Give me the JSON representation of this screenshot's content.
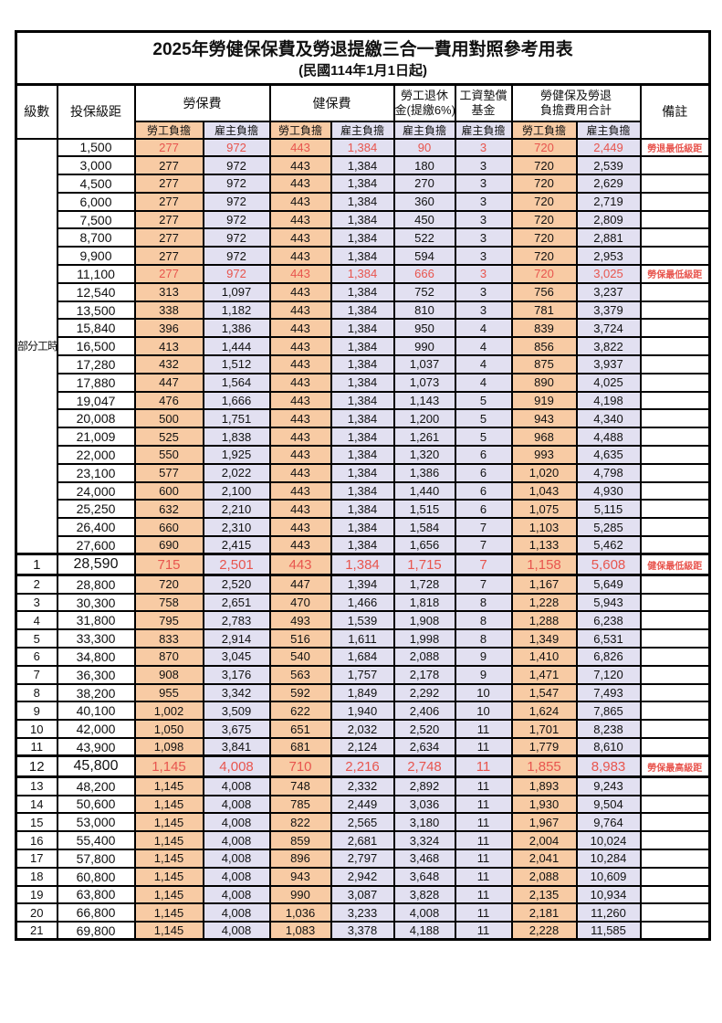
{
  "title": "2025年勞健保保費及勞退提繳三合一費用對照參考用表",
  "subtitle": "(民國114年1月1日起)",
  "columns": {
    "level": "級數",
    "bracket": "投保級距",
    "labor_fee": "勞保費",
    "health_fee": "健保費",
    "pension_line1": "勞工退休",
    "pension_line2": "金(提繳6%)",
    "wage_fund_line1": "工資墊償",
    "wage_fund_line2": "基金",
    "total_line1": "勞健保及勞退",
    "total_line2": "負擔費用合計",
    "remark": "備註",
    "employee_share": "勞工負擔",
    "employer_share": "雇主負擔"
  },
  "part_time_label": "部分工時",
  "colors": {
    "employee_bg": "#F8CBA4",
    "employer_bg": "#E2E0F1",
    "highlight_red": "#E8554E",
    "border": "#000000"
  },
  "rows": [
    {
      "level": "",
      "bracket": "1,500",
      "values": [
        "277",
        "972",
        "443",
        "1,384",
        "90",
        "3",
        "720",
        "2,449"
      ],
      "remark": "勞退最低級距",
      "red": true,
      "big": false
    },
    {
      "level": "",
      "bracket": "3,000",
      "values": [
        "277",
        "972",
        "443",
        "1,384",
        "180",
        "3",
        "720",
        "2,539"
      ],
      "remark": "",
      "red": false,
      "big": false
    },
    {
      "level": "",
      "bracket": "4,500",
      "values": [
        "277",
        "972",
        "443",
        "1,384",
        "270",
        "3",
        "720",
        "2,629"
      ],
      "remark": "",
      "red": false,
      "big": false
    },
    {
      "level": "",
      "bracket": "6,000",
      "values": [
        "277",
        "972",
        "443",
        "1,384",
        "360",
        "3",
        "720",
        "2,719"
      ],
      "remark": "",
      "red": false,
      "big": false
    },
    {
      "level": "",
      "bracket": "7,500",
      "values": [
        "277",
        "972",
        "443",
        "1,384",
        "450",
        "3",
        "720",
        "2,809"
      ],
      "remark": "",
      "red": false,
      "big": false
    },
    {
      "level": "",
      "bracket": "8,700",
      "values": [
        "277",
        "972",
        "443",
        "1,384",
        "522",
        "3",
        "720",
        "2,881"
      ],
      "remark": "",
      "red": false,
      "big": false
    },
    {
      "level": "",
      "bracket": "9,900",
      "values": [
        "277",
        "972",
        "443",
        "1,384",
        "594",
        "3",
        "720",
        "2,953"
      ],
      "remark": "",
      "red": false,
      "big": false
    },
    {
      "level": "",
      "bracket": "11,100",
      "values": [
        "277",
        "972",
        "443",
        "1,384",
        "666",
        "3",
        "720",
        "3,025"
      ],
      "remark": "勞保最低級距",
      "red": true,
      "big": false
    },
    {
      "level": "",
      "bracket": "12,540",
      "values": [
        "313",
        "1,097",
        "443",
        "1,384",
        "752",
        "3",
        "756",
        "3,237"
      ],
      "remark": "",
      "red": false,
      "big": false
    },
    {
      "level": "",
      "bracket": "13,500",
      "values": [
        "338",
        "1,182",
        "443",
        "1,384",
        "810",
        "3",
        "781",
        "3,379"
      ],
      "remark": "",
      "red": false,
      "big": false
    },
    {
      "level": "",
      "bracket": "15,840",
      "values": [
        "396",
        "1,386",
        "443",
        "1,384",
        "950",
        "4",
        "839",
        "3,724"
      ],
      "remark": "",
      "red": false,
      "big": false
    },
    {
      "level": "",
      "bracket": "16,500",
      "values": [
        "413",
        "1,444",
        "443",
        "1,384",
        "990",
        "4",
        "856",
        "3,822"
      ],
      "remark": "",
      "red": false,
      "big": false
    },
    {
      "level": "",
      "bracket": "17,280",
      "values": [
        "432",
        "1,512",
        "443",
        "1,384",
        "1,037",
        "4",
        "875",
        "3,937"
      ],
      "remark": "",
      "red": false,
      "big": false
    },
    {
      "level": "",
      "bracket": "17,880",
      "values": [
        "447",
        "1,564",
        "443",
        "1,384",
        "1,073",
        "4",
        "890",
        "4,025"
      ],
      "remark": "",
      "red": false,
      "big": false
    },
    {
      "level": "",
      "bracket": "19,047",
      "values": [
        "476",
        "1,666",
        "443",
        "1,384",
        "1,143",
        "5",
        "919",
        "4,198"
      ],
      "remark": "",
      "red": false,
      "big": false
    },
    {
      "level": "",
      "bracket": "20,008",
      "values": [
        "500",
        "1,751",
        "443",
        "1,384",
        "1,200",
        "5",
        "943",
        "4,340"
      ],
      "remark": "",
      "red": false,
      "big": false
    },
    {
      "level": "",
      "bracket": "21,009",
      "values": [
        "525",
        "1,838",
        "443",
        "1,384",
        "1,261",
        "5",
        "968",
        "4,488"
      ],
      "remark": "",
      "red": false,
      "big": false
    },
    {
      "level": "",
      "bracket": "22,000",
      "values": [
        "550",
        "1,925",
        "443",
        "1,384",
        "1,320",
        "6",
        "993",
        "4,635"
      ],
      "remark": "",
      "red": false,
      "big": false
    },
    {
      "level": "",
      "bracket": "23,100",
      "values": [
        "577",
        "2,022",
        "443",
        "1,384",
        "1,386",
        "6",
        "1,020",
        "4,798"
      ],
      "remark": "",
      "red": false,
      "big": false
    },
    {
      "level": "",
      "bracket": "24,000",
      "values": [
        "600",
        "2,100",
        "443",
        "1,384",
        "1,440",
        "6",
        "1,043",
        "4,930"
      ],
      "remark": "",
      "red": false,
      "big": false
    },
    {
      "level": "",
      "bracket": "25,250",
      "values": [
        "632",
        "2,210",
        "443",
        "1,384",
        "1,515",
        "6",
        "1,075",
        "5,115"
      ],
      "remark": "",
      "red": false,
      "big": false
    },
    {
      "level": "",
      "bracket": "26,400",
      "values": [
        "660",
        "2,310",
        "443",
        "1,384",
        "1,584",
        "7",
        "1,103",
        "5,285"
      ],
      "remark": "",
      "red": false,
      "big": false
    },
    {
      "level": "",
      "bracket": "27,600",
      "values": [
        "690",
        "2,415",
        "443",
        "1,384",
        "1,656",
        "7",
        "1,133",
        "5,462"
      ],
      "remark": "",
      "red": false,
      "big": false
    },
    {
      "level": "1",
      "bracket": "28,590",
      "values": [
        "715",
        "2,501",
        "443",
        "1,384",
        "1,715",
        "7",
        "1,158",
        "5,608"
      ],
      "remark": "健保最低級距",
      "red": true,
      "big": true
    },
    {
      "level": "2",
      "bracket": "28,800",
      "values": [
        "720",
        "2,520",
        "447",
        "1,394",
        "1,728",
        "7",
        "1,167",
        "5,649"
      ],
      "remark": "",
      "red": false,
      "big": false
    },
    {
      "level": "3",
      "bracket": "30,300",
      "values": [
        "758",
        "2,651",
        "470",
        "1,466",
        "1,818",
        "8",
        "1,228",
        "5,943"
      ],
      "remark": "",
      "red": false,
      "big": false
    },
    {
      "level": "4",
      "bracket": "31,800",
      "values": [
        "795",
        "2,783",
        "493",
        "1,539",
        "1,908",
        "8",
        "1,288",
        "6,238"
      ],
      "remark": "",
      "red": false,
      "big": false
    },
    {
      "level": "5",
      "bracket": "33,300",
      "values": [
        "833",
        "2,914",
        "516",
        "1,611",
        "1,998",
        "8",
        "1,349",
        "6,531"
      ],
      "remark": "",
      "red": false,
      "big": false
    },
    {
      "level": "6",
      "bracket": "34,800",
      "values": [
        "870",
        "3,045",
        "540",
        "1,684",
        "2,088",
        "9",
        "1,410",
        "6,826"
      ],
      "remark": "",
      "red": false,
      "big": false
    },
    {
      "level": "7",
      "bracket": "36,300",
      "values": [
        "908",
        "3,176",
        "563",
        "1,757",
        "2,178",
        "9",
        "1,471",
        "7,120"
      ],
      "remark": "",
      "red": false,
      "big": false
    },
    {
      "level": "8",
      "bracket": "38,200",
      "values": [
        "955",
        "3,342",
        "592",
        "1,849",
        "2,292",
        "10",
        "1,547",
        "7,493"
      ],
      "remark": "",
      "red": false,
      "big": false
    },
    {
      "level": "9",
      "bracket": "40,100",
      "values": [
        "1,002",
        "3,509",
        "622",
        "1,940",
        "2,406",
        "10",
        "1,624",
        "7,865"
      ],
      "remark": "",
      "red": false,
      "big": false
    },
    {
      "level": "10",
      "bracket": "42,000",
      "values": [
        "1,050",
        "3,675",
        "651",
        "2,032",
        "2,520",
        "11",
        "1,701",
        "8,238"
      ],
      "remark": "",
      "red": false,
      "big": false
    },
    {
      "level": "11",
      "bracket": "43,900",
      "values": [
        "1,098",
        "3,841",
        "681",
        "2,124",
        "2,634",
        "11",
        "1,779",
        "8,610"
      ],
      "remark": "",
      "red": false,
      "big": false
    },
    {
      "level": "12",
      "bracket": "45,800",
      "values": [
        "1,145",
        "4,008",
        "710",
        "2,216",
        "2,748",
        "11",
        "1,855",
        "8,983"
      ],
      "remark": "勞保最高級距",
      "red": true,
      "big": true
    },
    {
      "level": "13",
      "bracket": "48,200",
      "values": [
        "1,145",
        "4,008",
        "748",
        "2,332",
        "2,892",
        "11",
        "1,893",
        "9,243"
      ],
      "remark": "",
      "red": false,
      "big": false
    },
    {
      "level": "14",
      "bracket": "50,600",
      "values": [
        "1,145",
        "4,008",
        "785",
        "2,449",
        "3,036",
        "11",
        "1,930",
        "9,504"
      ],
      "remark": "",
      "red": false,
      "big": false
    },
    {
      "level": "15",
      "bracket": "53,000",
      "values": [
        "1,145",
        "4,008",
        "822",
        "2,565",
        "3,180",
        "11",
        "1,967",
        "9,764"
      ],
      "remark": "",
      "red": false,
      "big": false
    },
    {
      "level": "16",
      "bracket": "55,400",
      "values": [
        "1,145",
        "4,008",
        "859",
        "2,681",
        "3,324",
        "11",
        "2,004",
        "10,024"
      ],
      "remark": "",
      "red": false,
      "big": false
    },
    {
      "level": "17",
      "bracket": "57,800",
      "values": [
        "1,145",
        "4,008",
        "896",
        "2,797",
        "3,468",
        "11",
        "2,041",
        "10,284"
      ],
      "remark": "",
      "red": false,
      "big": false
    },
    {
      "level": "18",
      "bracket": "60,800",
      "values": [
        "1,145",
        "4,008",
        "943",
        "2,942",
        "3,648",
        "11",
        "2,088",
        "10,609"
      ],
      "remark": "",
      "red": false,
      "big": false
    },
    {
      "level": "19",
      "bracket": "63,800",
      "values": [
        "1,145",
        "4,008",
        "990",
        "3,087",
        "3,828",
        "11",
        "2,135",
        "10,934"
      ],
      "remark": "",
      "red": false,
      "big": false
    },
    {
      "level": "20",
      "bracket": "66,800",
      "values": [
        "1,145",
        "4,008",
        "1,036",
        "3,233",
        "4,008",
        "11",
        "2,181",
        "11,260"
      ],
      "remark": "",
      "red": false,
      "big": false
    },
    {
      "level": "21",
      "bracket": "69,800",
      "values": [
        "1,145",
        "4,008",
        "1,083",
        "3,378",
        "4,188",
        "11",
        "2,228",
        "11,585"
      ],
      "remark": "",
      "red": false,
      "big": false
    }
  ]
}
